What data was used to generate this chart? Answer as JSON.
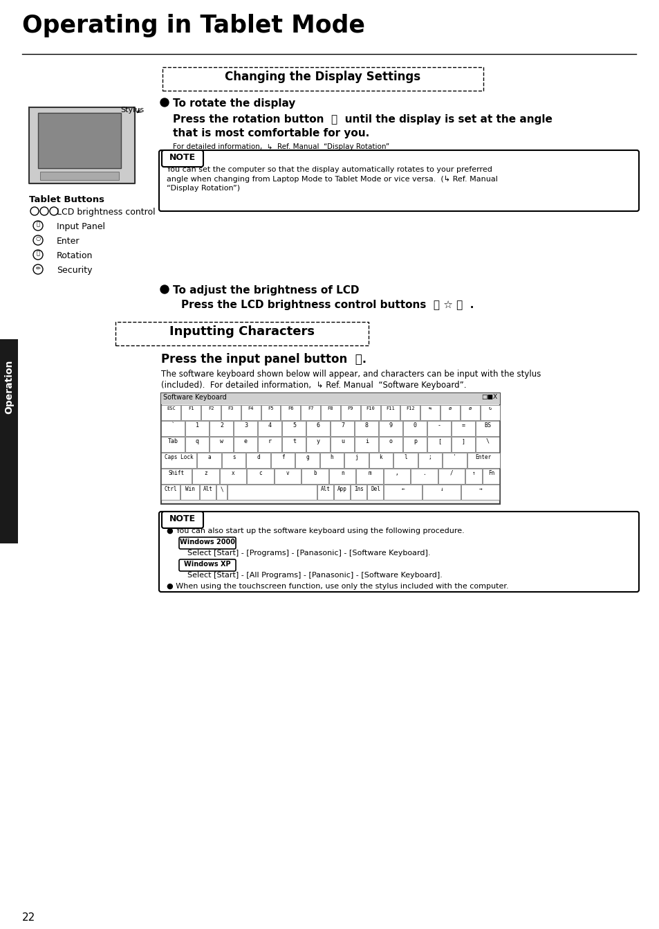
{
  "bg_color": "#ffffff",
  "page_title": "Operating in Tablet Mode",
  "section1_title": "Changing the Display Settings",
  "section2_title": "Inputting Characters",
  "note1_text": "You can set the computer so that the display automatically rotates to your preferred\nangle when changing from Laptop Mode to Tablet Mode or vice versa.  (↳ Ref. Manual\n“Display Rotation”)",
  "note2_lines": [
    "● You can also start up the software keyboard using the following procedure.",
    "Windows2000",
    "Select [Start] - [Programs] - [Panasonic] - [Software Keyboard].",
    "WindowsXP",
    "Select [Start] - [All Programs] - [Panasonic] - [Software Keyboard].",
    "● When using the touchscreen function, use only the stylus included with the computer."
  ],
  "side_label": "Operation",
  "page_number": "22",
  "keyboard_rows": [
    [
      "ESC",
      "F1",
      "F2",
      "F3",
      "F4",
      "F5",
      "F6",
      "F7",
      "F8",
      "F9",
      "F10",
      "F11",
      "F12",
      "⇆",
      "ø",
      "ø",
      "↻"
    ],
    [
      "`",
      "1",
      "2",
      "3",
      "4",
      "5",
      "6",
      "7",
      "8",
      "9",
      "0",
      "-",
      "=",
      "BS"
    ],
    [
      "Tab",
      "q",
      "w",
      "e",
      "r",
      "t",
      "y",
      "u",
      "i",
      "o",
      "p",
      "[",
      "]",
      "\\"
    ],
    [
      "Caps Lock",
      "a",
      "s",
      "d",
      "f",
      "g",
      "h",
      "j",
      "k",
      "l",
      ";",
      "'",
      "Enter"
    ],
    [
      "Shift",
      "z",
      "x",
      "c",
      "v",
      "b",
      "n",
      "m",
      ",",
      ".",
      "/",
      "↑",
      "Fn"
    ],
    [
      "Ctrl",
      "Win",
      "Alt",
      "\\",
      "",
      "",
      "",
      "Alt",
      "App",
      "Ins",
      "Del",
      "←",
      "↓",
      "→"
    ]
  ]
}
